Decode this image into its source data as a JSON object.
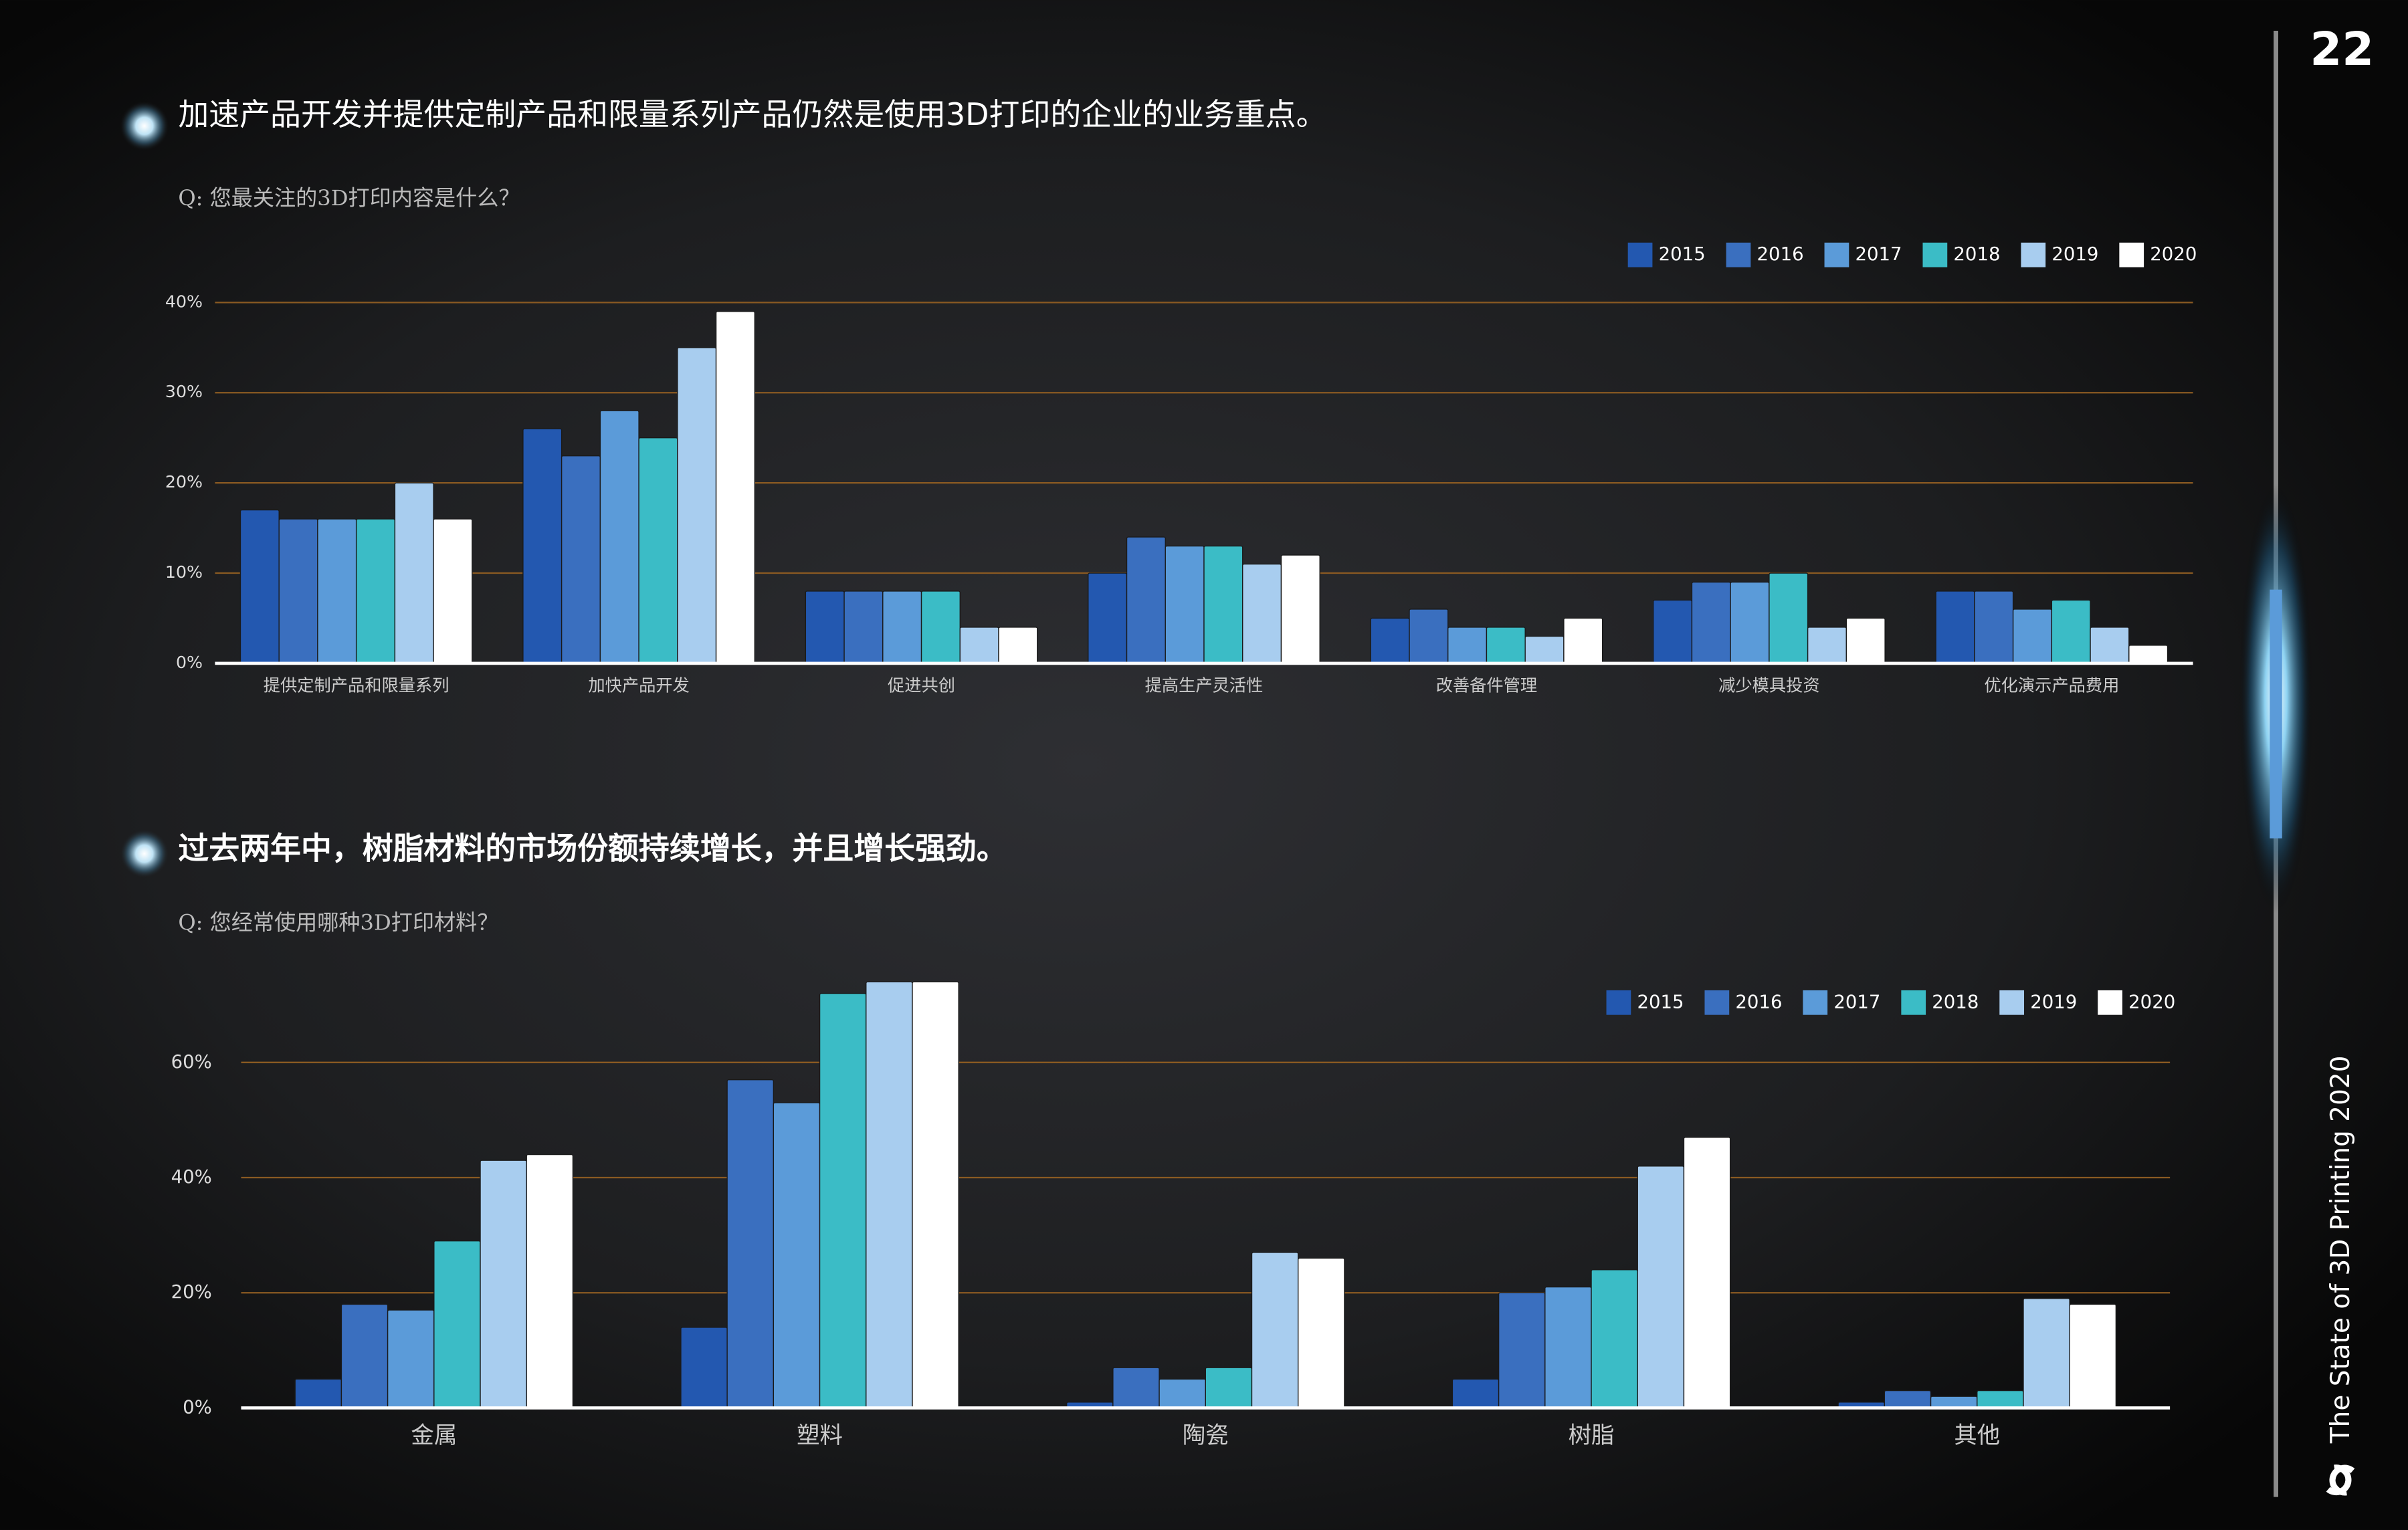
{
  "page_number": "22",
  "side_title": "The State of 3D Printing 2020",
  "chart_data": [
    {
      "type": "bar",
      "title": "加速产品开发并提供定制产品和限量系列产品仍然是使用3D打印的企业的业务重点。",
      "subtitle": "Q: 您最关注的3D打印内容是什么？",
      "categories": [
        "提供定制产品和限量系列",
        "加快产品开发",
        "促进共创",
        "提高生产灵活性",
        "改善备件管理",
        "减少模具投资",
        "优化演示产品费用"
      ],
      "series": [
        {
          "name": "2015",
          "color": "#2358b0",
          "values": [
            17,
            26,
            8,
            10,
            5,
            7,
            8
          ]
        },
        {
          "name": "2016",
          "color": "#3a6fbf",
          "values": [
            16,
            23,
            8,
            14,
            6,
            9,
            8
          ]
        },
        {
          "name": "2017",
          "color": "#5b9bd9",
          "values": [
            16,
            28,
            8,
            13,
            4,
            9,
            6
          ]
        },
        {
          "name": "2018",
          "color": "#3bbcc6",
          "values": [
            16,
            25,
            8,
            13,
            4,
            10,
            7
          ]
        },
        {
          "name": "2019",
          "color": "#a8cdef",
          "values": [
            20,
            35,
            4,
            11,
            3,
            4,
            4
          ]
        },
        {
          "name": "2020",
          "color": "#ffffff",
          "values": [
            16,
            39,
            4,
            12,
            5,
            5,
            2
          ]
        }
      ],
      "ylim": [
        0,
        40
      ],
      "yticks": [
        {
          "value": 0,
          "label": "0%"
        },
        {
          "value": 10,
          "label": "10%"
        },
        {
          "value": 20,
          "label": "20%"
        },
        {
          "value": 30,
          "label": "30%"
        },
        {
          "value": 40,
          "label": "40%"
        }
      ],
      "grid": true,
      "legend": "top-right"
    },
    {
      "type": "bar",
      "title": "过去两年中，树脂材料的市场份额持续增长，并且增长强劲。",
      "subtitle": "Q: 您经常使用哪种3D打印材料？",
      "categories": [
        "金属",
        "塑料",
        "陶瓷",
        "树脂",
        "其他"
      ],
      "series": [
        {
          "name": "2015",
          "color": "#2358b0",
          "values": [
            5,
            14,
            1,
            5,
            1
          ]
        },
        {
          "name": "2016",
          "color": "#3a6fbf",
          "values": [
            18,
            57,
            7,
            20,
            3
          ]
        },
        {
          "name": "2017",
          "color": "#5b9bd9",
          "values": [
            17,
            53,
            5,
            21,
            2
          ]
        },
        {
          "name": "2018",
          "color": "#3bbcc6",
          "values": [
            29,
            72,
            7,
            24,
            3
          ]
        },
        {
          "name": "2019",
          "color": "#a8cdef",
          "values": [
            43,
            74,
            27,
            42,
            19
          ]
        },
        {
          "name": "2020",
          "color": "#ffffff",
          "values": [
            44,
            74,
            26,
            47,
            18
          ]
        }
      ],
      "ylim": [
        0,
        76
      ],
      "yticks": [
        {
          "value": 0,
          "label": "0%"
        },
        {
          "value": 20,
          "label": "20%"
        },
        {
          "value": 40,
          "label": "40%"
        },
        {
          "value": 60,
          "label": "60%"
        }
      ],
      "grid": true,
      "legend": "top-right"
    }
  ]
}
